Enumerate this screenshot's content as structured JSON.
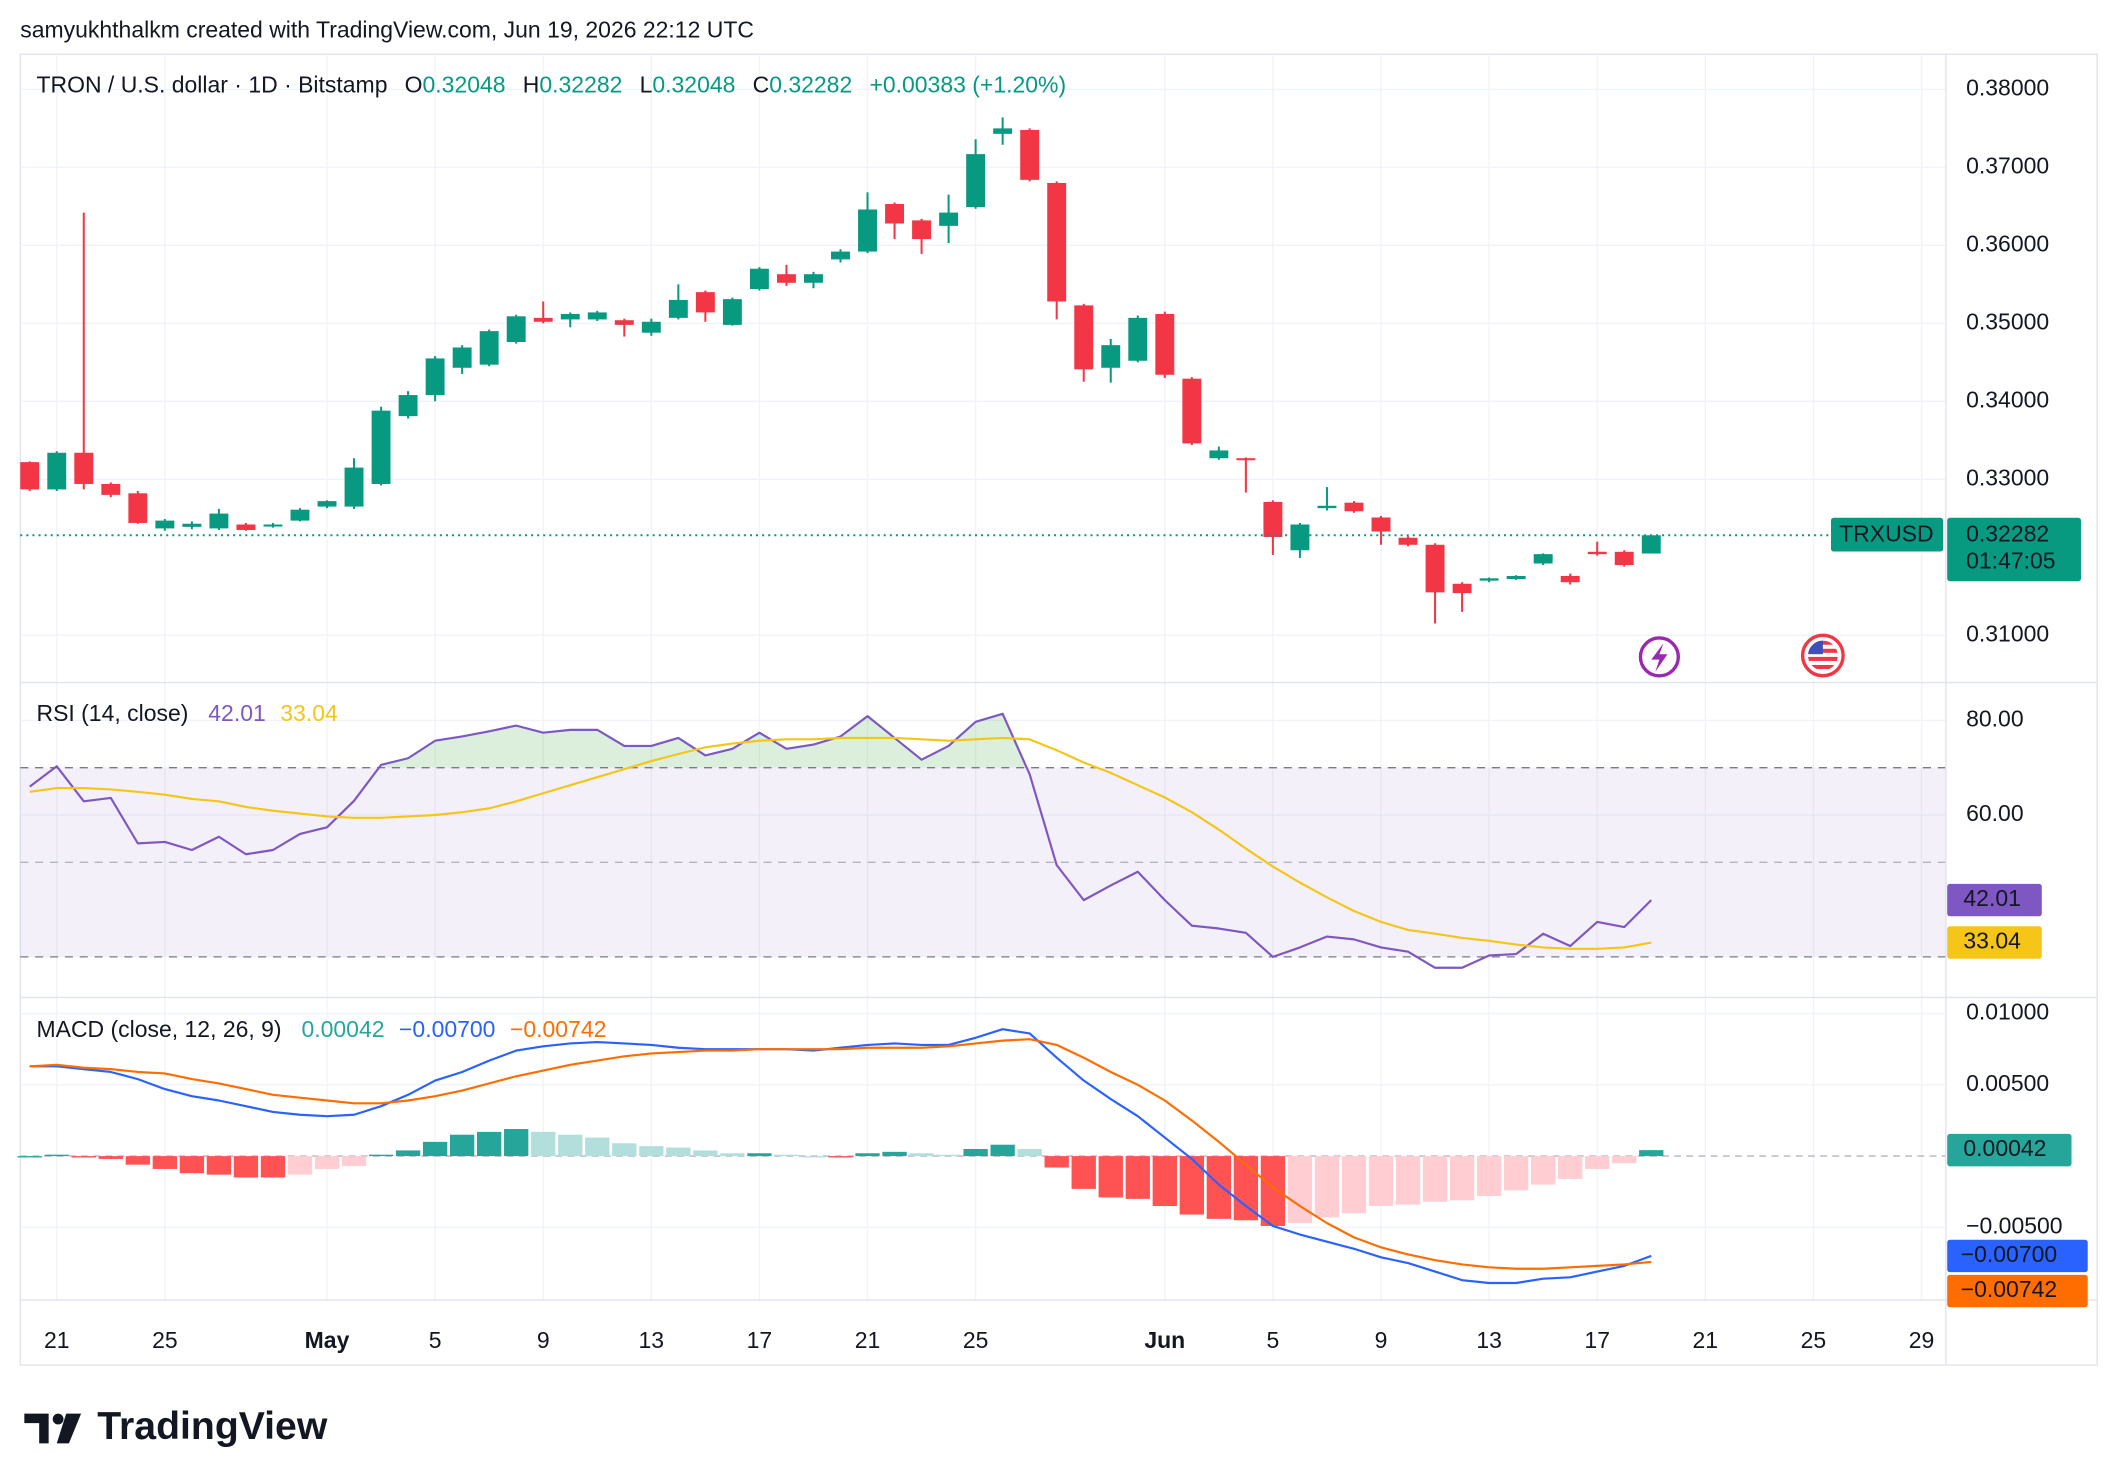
{
  "header": {
    "attribution": "samyukhthalkm created with TradingView.com, Jun 19, 2026 22:12 UTC"
  },
  "footer": {
    "logo_text": "TradingView"
  },
  "chart_data": [
    {
      "type": "candlestick",
      "title": "TRON / U.S. dollar · 1D · Bitstamp",
      "ohlc_labels": [
        "O",
        "H",
        "L",
        "C"
      ],
      "change_label": "+0.00383 (+1.20%)",
      "symbol": "TRXUSD",
      "countdown": "01:47:05",
      "up_color": "#089981",
      "down_color": "#f23645",
      "xlim": [
        -0.35,
        70.9
      ],
      "ylim": [
        0.30393,
        0.38451
      ],
      "grid": true,
      "yticks": [
        {
          "value": 0.38,
          "label": "0.38000"
        },
        {
          "value": 0.37,
          "label": "0.37000"
        },
        {
          "value": 0.36,
          "label": "0.36000"
        },
        {
          "value": 0.35,
          "label": "0.35000"
        },
        {
          "value": 0.34,
          "label": "0.34000"
        },
        {
          "value": 0.33,
          "label": "0.33000"
        },
        {
          "value": 0.31,
          "label": "0.31000"
        }
      ],
      "ohlc": [
        [
          0.3322,
          0.3323,
          0.3285,
          0.3287
        ],
        [
          0.3287,
          0.3336,
          0.3285,
          0.3334
        ],
        [
          0.3334,
          0.3642,
          0.3287,
          0.3294
        ],
        [
          0.3294,
          0.3296,
          0.3277,
          0.328
        ],
        [
          0.3282,
          0.3285,
          0.3243,
          0.3244
        ],
        [
          0.3237,
          0.3249,
          0.3234,
          0.3247
        ],
        [
          0.3239,
          0.3246,
          0.3236,
          0.3243
        ],
        [
          0.3237,
          0.3262,
          0.3235,
          0.3256
        ],
        [
          0.3242,
          0.3244,
          0.3234,
          0.3235
        ],
        [
          0.324,
          0.3244,
          0.3238,
          0.3242
        ],
        [
          0.3247,
          0.3263,
          0.3246,
          0.3261
        ],
        [
          0.3265,
          0.3273,
          0.3263,
          0.3272
        ],
        [
          0.3265,
          0.3327,
          0.3262,
          0.3315
        ],
        [
          0.3294,
          0.3393,
          0.3292,
          0.3388
        ],
        [
          0.3381,
          0.3413,
          0.3378,
          0.3408
        ],
        [
          0.3408,
          0.3458,
          0.34,
          0.3455
        ],
        [
          0.3443,
          0.3472,
          0.3435,
          0.3469
        ],
        [
          0.3447,
          0.3492,
          0.3445,
          0.349
        ],
        [
          0.3476,
          0.3511,
          0.3474,
          0.3509
        ],
        [
          0.3507,
          0.3528,
          0.35,
          0.3502
        ],
        [
          0.3505,
          0.3514,
          0.3495,
          0.3512
        ],
        [
          0.3505,
          0.3516,
          0.3503,
          0.3514
        ],
        [
          0.3504,
          0.3506,
          0.3483,
          0.3498
        ],
        [
          0.3488,
          0.3506,
          0.3484,
          0.3502
        ],
        [
          0.3507,
          0.355,
          0.3505,
          0.353
        ],
        [
          0.354,
          0.3542,
          0.3502,
          0.3514
        ],
        [
          0.3498,
          0.3533,
          0.3497,
          0.3531
        ],
        [
          0.3544,
          0.3572,
          0.3542,
          0.357
        ],
        [
          0.3563,
          0.3575,
          0.3548,
          0.3552
        ],
        [
          0.3552,
          0.3566,
          0.3545,
          0.3563
        ],
        [
          0.3582,
          0.3595,
          0.3578,
          0.3592
        ],
        [
          0.3592,
          0.3668,
          0.359,
          0.3646
        ],
        [
          0.3653,
          0.3655,
          0.3608,
          0.3628
        ],
        [
          0.3632,
          0.3634,
          0.3589,
          0.3608
        ],
        [
          0.3625,
          0.3665,
          0.3603,
          0.3642
        ],
        [
          0.3649,
          0.3736,
          0.3647,
          0.3717
        ],
        [
          0.3743,
          0.3764,
          0.3729,
          0.375
        ],
        [
          0.3748,
          0.375,
          0.3682,
          0.3684
        ],
        [
          0.368,
          0.3682,
          0.3505,
          0.3528
        ],
        [
          0.3523,
          0.3525,
          0.3425,
          0.3441
        ],
        [
          0.3443,
          0.348,
          0.3424,
          0.3472
        ],
        [
          0.3452,
          0.351,
          0.345,
          0.3507
        ],
        [
          0.3512,
          0.3515,
          0.343,
          0.3434
        ],
        [
          0.3429,
          0.3431,
          0.3344,
          0.3346
        ],
        [
          0.3327,
          0.3342,
          0.3325,
          0.3337
        ],
        [
          0.3327,
          0.3328,
          0.3283,
          0.3325
        ],
        [
          0.3271,
          0.3273,
          0.3203,
          0.3226
        ],
        [
          0.3209,
          0.3244,
          0.3199,
          0.3242
        ],
        [
          0.3263,
          0.329,
          0.326,
          0.3266
        ],
        [
          0.327,
          0.3272,
          0.3257,
          0.3259
        ],
        [
          0.3251,
          0.3253,
          0.3216,
          0.3233
        ],
        [
          0.3225,
          0.3227,
          0.3214,
          0.3216
        ],
        [
          0.3216,
          0.3218,
          0.3115,
          0.3155
        ],
        [
          0.3166,
          0.3168,
          0.313,
          0.3154
        ],
        [
          0.317,
          0.3174,
          0.3168,
          0.3173
        ],
        [
          0.3172,
          0.3177,
          0.3171,
          0.3176
        ],
        [
          0.3192,
          0.3205,
          0.319,
          0.3204
        ],
        [
          0.3176,
          0.3179,
          0.3165,
          0.3168
        ],
        [
          0.3207,
          0.322,
          0.3202,
          0.3204
        ],
        [
          0.3207,
          0.3209,
          0.3188,
          0.319
        ],
        [
          0.32048,
          0.32282,
          0.32048,
          0.32282
        ]
      ]
    },
    {
      "type": "line",
      "title": "RSI (14, close)",
      "xlim": [
        -0.35,
        70.9
      ],
      "ylim": [
        21.43,
        88
      ],
      "grid": true,
      "yticks": [
        {
          "value": 80,
          "label": "80.00"
        },
        {
          "value": 60,
          "label": "60.00"
        }
      ],
      "bands": [
        70,
        50,
        30
      ],
      "band_color": "#7e57c2",
      "overbought_color": "#4caf50",
      "series": [
        {
          "color": "#7e57c2",
          "values": [
            66,
            70.3,
            62.9,
            63.6,
            54,
            54.3,
            52.6,
            55.4,
            51.7,
            52.6,
            56,
            57.4,
            63,
            70.6,
            72,
            75.7,
            76.6,
            77.7,
            78.9,
            77.4,
            78,
            78,
            74.6,
            74.6,
            76.3,
            72.6,
            74,
            77.4,
            74,
            74.9,
            76.6,
            80.9,
            76.3,
            71.7,
            74.6,
            79.7,
            81.4,
            68.6,
            49.4,
            42,
            45.1,
            48,
            42,
            36.6,
            36,
            35.1,
            30,
            32,
            34.3,
            33.7,
            32,
            31.1,
            27.7,
            27.7,
            30.3,
            30.6,
            34.9,
            32.3,
            37.4,
            36.3,
            42.01
          ]
        },
        {
          "color": "#f5c518",
          "values": [
            64.9,
            65.7,
            65.7,
            65.4,
            64.9,
            64.3,
            63.4,
            62.9,
            61.7,
            60.9,
            60.3,
            59.7,
            59.4,
            59.4,
            59.7,
            60,
            60.6,
            61.4,
            62.9,
            64.6,
            66.3,
            68,
            69.7,
            71.4,
            72.9,
            74.3,
            75.1,
            75.7,
            76,
            76,
            76.3,
            76.3,
            76.3,
            76,
            75.7,
            76,
            76.3,
            76,
            73.7,
            71.1,
            68.9,
            66.3,
            63.7,
            60.6,
            56.9,
            52.9,
            49.1,
            45.7,
            42.6,
            39.7,
            37.4,
            35.7,
            34.9,
            34,
            33.4,
            32.6,
            32,
            31.7,
            31.7,
            32,
            33.04
          ]
        }
      ]
    },
    {
      "type": "macd",
      "title": "MACD (close, 12, 26, 9)",
      "xlim": [
        -0.35,
        70.9
      ],
      "ylim": [
        -0.0101,
        0.01113
      ],
      "grid": true,
      "yticks": [
        {
          "value": 0.01,
          "label": "0.01000"
        },
        {
          "value": 0.005,
          "label": "0.00500"
        },
        {
          "value": -0.005,
          "label": "−0.00500"
        }
      ],
      "xticks": [
        {
          "value": 1,
          "label": "21"
        },
        {
          "value": 5,
          "label": "25"
        },
        {
          "value": 11,
          "label": "May"
        },
        {
          "value": 15,
          "label": "5"
        },
        {
          "value": 19,
          "label": "9"
        },
        {
          "value": 23,
          "label": "13"
        },
        {
          "value": 27,
          "label": "17"
        },
        {
          "value": 31,
          "label": "21"
        },
        {
          "value": 35,
          "label": "25"
        },
        {
          "value": 42,
          "label": "Jun"
        },
        {
          "value": 46,
          "label": "5"
        },
        {
          "value": 50,
          "label": "9"
        },
        {
          "value": 54,
          "label": "13"
        },
        {
          "value": 58,
          "label": "17"
        },
        {
          "value": 62,
          "label": "21"
        },
        {
          "value": 66,
          "label": "25"
        },
        {
          "value": 70,
          "label": "29"
        }
      ],
      "histogram": {
        "colors": [
          "#26a69a",
          "#b2dfdb",
          "#ffcdd2",
          "#ff5252"
        ],
        "values": [
          0,
          0.0001,
          -0.0001,
          -0.0002,
          -0.0006,
          -0.0009,
          -0.0012,
          -0.0013,
          -0.0015,
          -0.0015,
          -0.0013,
          -0.0009,
          -0.0007,
          0.0001,
          0.0004,
          0.001,
          0.0015,
          0.0017,
          0.0019,
          0.0017,
          0.0015,
          0.0013,
          0.0009,
          0.0007,
          0.0006,
          0.0004,
          0.0002,
          0.0002,
          0.0001,
          0,
          -0.0001,
          0.0002,
          0.0003,
          0.0002,
          0.0001,
          0.0005,
          0.0008,
          0.0005,
          -0.0008,
          -0.0023,
          -0.0029,
          -0.003,
          -0.0035,
          -0.0041,
          -0.0044,
          -0.0045,
          -0.0049,
          -0.0047,
          -0.0043,
          -0.004,
          -0.0035,
          -0.0034,
          -0.0032,
          -0.0031,
          -0.0028,
          -0.0024,
          -0.002,
          -0.0016,
          -0.0009,
          -0.0005,
          0.00042
        ]
      },
      "series": [
        {
          "color": "#2962ff",
          "last_label": "−0.00700",
          "values": [
            0.0063,
            0.0063,
            0.0061,
            0.0059,
            0.0054,
            0.0047,
            0.0042,
            0.0039,
            0.0035,
            0.0031,
            0.0029,
            0.0028,
            0.0029,
            0.0035,
            0.0043,
            0.0053,
            0.0059,
            0.0067,
            0.0074,
            0.0077,
            0.0079,
            0.008,
            0.0079,
            0.0078,
            0.0076,
            0.0075,
            0.0075,
            0.0075,
            0.0075,
            0.0074,
            0.0076,
            0.0078,
            0.0079,
            0.0078,
            0.0078,
            0.0083,
            0.0089,
            0.0086,
            0.0069,
            0.0053,
            0.004,
            0.0028,
            0.0013,
            -0.0002,
            -0.002,
            -0.0035,
            -0.0049,
            -0.0055,
            -0.006,
            -0.0065,
            -0.0071,
            -0.0075,
            -0.0081,
            -0.0087,
            -0.0089,
            -0.0089,
            -0.0086,
            -0.0085,
            -0.0081,
            -0.0077,
            -0.007
          ]
        },
        {
          "color": "#ff6d00",
          "last_label": "−0.00742",
          "values": [
            0.0063,
            0.0064,
            0.0062,
            0.0061,
            0.0059,
            0.0058,
            0.0054,
            0.0051,
            0.0047,
            0.0043,
            0.0041,
            0.0039,
            0.0037,
            0.0037,
            0.0039,
            0.0042,
            0.0046,
            0.0051,
            0.0056,
            0.006,
            0.0064,
            0.0067,
            0.007,
            0.0072,
            0.0073,
            0.0074,
            0.0074,
            0.0075,
            0.0075,
            0.0075,
            0.0075,
            0.0076,
            0.0076,
            0.0076,
            0.0077,
            0.0079,
            0.0081,
            0.0082,
            0.0078,
            0.0069,
            0.0059,
            0.005,
            0.0039,
            0.0025,
            0.001,
            -0.0006,
            -0.0022,
            -0.0035,
            -0.0047,
            -0.0057,
            -0.0064,
            -0.0069,
            -0.0073,
            -0.0076,
            -0.0078,
            -0.0079,
            -0.0079,
            -0.0078,
            -0.0077,
            -0.0076,
            -0.00742
          ]
        }
      ]
    }
  ]
}
